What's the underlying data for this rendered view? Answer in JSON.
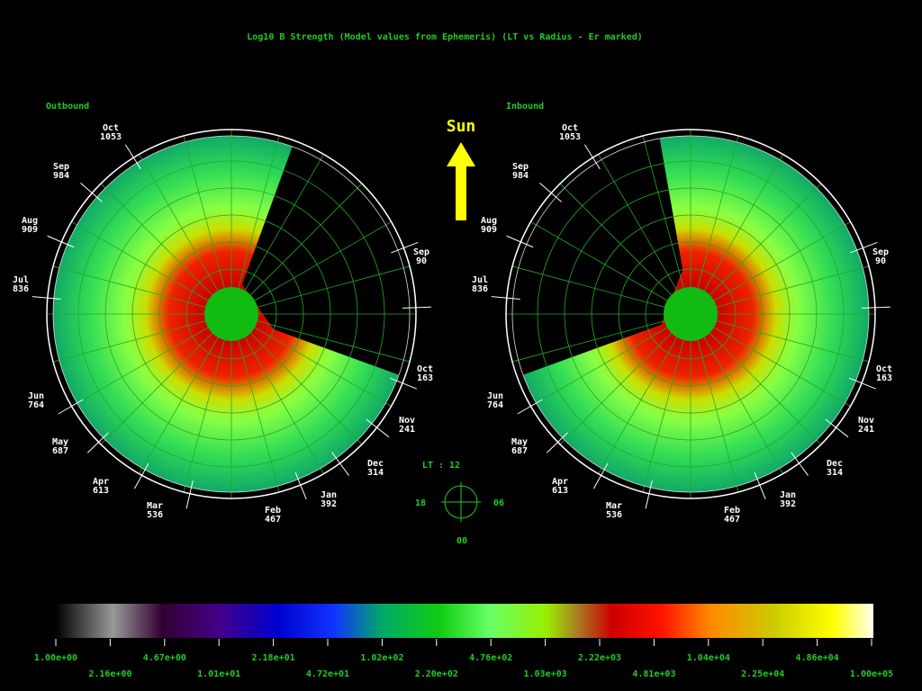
{
  "title": "Log10 B Strength (Model values from Ephemeris)  (LT vs Radius - Er marked)",
  "sun_label": "Sun",
  "panels": [
    {
      "label": "Outbound",
      "markers": [
        {
          "month": "Oct",
          "value": "1053"
        },
        {
          "month": "Sep",
          "value": "984"
        },
        {
          "month": "Aug",
          "value": "909"
        },
        {
          "month": "Jul",
          "value": "836"
        },
        {
          "month": "Jun",
          "value": "764"
        },
        {
          "month": "May",
          "value": "687"
        },
        {
          "month": "Apr",
          "value": "613"
        },
        {
          "month": "Mar",
          "value": "536"
        },
        {
          "month": "Feb",
          "value": "467"
        },
        {
          "month": "Jan",
          "value": "392"
        },
        {
          "month": "Dec",
          "value": "314"
        },
        {
          "month": "Nov",
          "value": "241"
        },
        {
          "month": "Oct",
          "value": "163"
        },
        {
          "month": "Sep",
          "value": "90"
        }
      ]
    },
    {
      "label": "Inbound",
      "markers": [
        {
          "month": "Oct",
          "value": "1053"
        },
        {
          "month": "Sep",
          "value": "984"
        },
        {
          "month": "Aug",
          "value": "909"
        },
        {
          "month": "Jul",
          "value": "836"
        },
        {
          "month": "Jun",
          "value": "764"
        },
        {
          "month": "May",
          "value": "687"
        },
        {
          "month": "Apr",
          "value": "613"
        },
        {
          "month": "Mar",
          "value": "536"
        },
        {
          "month": "Feb",
          "value": "467"
        },
        {
          "month": "Jan",
          "value": "392"
        },
        {
          "month": "Dec",
          "value": "314"
        },
        {
          "month": "Nov",
          "value": "241"
        },
        {
          "month": "Oct",
          "value": "163"
        },
        {
          "month": "Sep",
          "value": "90"
        }
      ]
    }
  ],
  "compass": {
    "title": "LT :  12",
    "left": "18",
    "right": "06",
    "bottom": "00"
  },
  "colorbar": {
    "upper_labels": [
      "1.00e+00",
      "4.67e+00",
      "2.18e+01",
      "1.02e+02",
      "4.76e+02",
      "2.22e+03",
      "1.04e+04",
      "4.86e+04"
    ],
    "lower_labels": [
      "2.16e+00",
      "1.01e+01",
      "4.72e+01",
      "2.20e+02",
      "1.03e+03",
      "4.81e+03",
      "2.25e+04",
      "1.00e+05"
    ]
  }
}
